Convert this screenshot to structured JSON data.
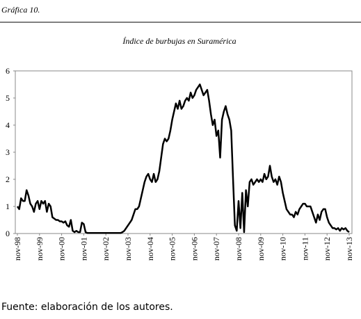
{
  "header": "Gráfica 10.",
  "source": "Fuente: elaboración de los autores.",
  "chart_data": {
    "type": "line",
    "title": "Índice de burbujas en Suramérica",
    "categories": [
      "nov-98",
      null,
      null,
      null,
      null,
      null,
      null,
      null,
      null,
      null,
      null,
      null,
      "nov-99",
      null,
      null,
      null,
      null,
      null,
      null,
      null,
      null,
      null,
      null,
      null,
      "nov-00",
      null,
      null,
      null,
      null,
      null,
      null,
      null,
      null,
      null,
      null,
      null,
      "nov-01",
      null,
      null,
      null,
      null,
      null,
      null,
      null,
      null,
      null,
      null,
      null,
      "nov-02",
      null,
      null,
      null,
      null,
      null,
      null,
      null,
      null,
      null,
      null,
      null,
      "nov-03",
      null,
      null,
      null,
      null,
      null,
      null,
      null,
      null,
      null,
      null,
      null,
      "nov-04",
      null,
      null,
      null,
      null,
      null,
      null,
      null,
      null,
      null,
      null,
      null,
      "nov-05",
      null,
      null,
      null,
      null,
      null,
      null,
      null,
      null,
      null,
      null,
      null,
      "nov-06",
      null,
      null,
      null,
      null,
      null,
      null,
      null,
      null,
      null,
      null,
      null,
      "nov-07",
      null,
      null,
      null,
      null,
      null,
      null,
      null,
      null,
      null,
      null,
      null,
      "nov-08",
      null,
      null,
      null,
      null,
      null,
      null,
      null,
      null,
      null,
      null,
      null,
      "nov-09",
      null,
      null,
      null,
      null,
      null,
      null,
      null,
      null,
      null,
      null,
      null,
      "nov-10",
      null,
      null,
      null,
      null,
      null,
      null,
      null,
      null,
      null,
      null,
      null,
      "nov-11",
      null,
      null,
      null,
      null,
      null,
      null,
      null,
      null,
      null,
      null,
      null,
      "nov-12",
      null,
      null,
      null,
      null,
      null,
      null,
      null,
      null,
      null,
      null,
      null,
      "nov-13"
    ],
    "values": [
      1.0,
      0.9,
      1.3,
      1.2,
      1.2,
      1.6,
      1.4,
      1.1,
      1.0,
      0.8,
      1.1,
      1.2,
      0.9,
      1.2,
      1.1,
      1.2,
      0.8,
      1.1,
      1.0,
      0.6,
      0.55,
      0.5,
      0.5,
      0.45,
      0.45,
      0.4,
      0.45,
      0.3,
      0.25,
      0.5,
      0.1,
      0.05,
      0.1,
      0.05,
      0.05,
      0.4,
      0.35,
      0.05,
      0.02,
      0.02,
      0.02,
      0.02,
      0.02,
      0.02,
      0.02,
      0.02,
      0.02,
      0.02,
      0.02,
      0.02,
      0.02,
      0.02,
      0.02,
      0.02,
      0.02,
      0.02,
      0.02,
      0.05,
      0.1,
      0.2,
      0.3,
      0.4,
      0.5,
      0.7,
      0.9,
      0.9,
      1.0,
      1.3,
      1.6,
      1.9,
      2.1,
      2.2,
      2.0,
      1.9,
      2.2,
      1.9,
      2.0,
      2.3,
      2.8,
      3.3,
      3.5,
      3.4,
      3.5,
      3.8,
      4.2,
      4.5,
      4.8,
      4.6,
      4.9,
      4.6,
      4.7,
      4.9,
      5.0,
      4.9,
      5.2,
      5.0,
      5.1,
      5.3,
      5.4,
      5.5,
      5.3,
      5.1,
      5.2,
      5.3,
      4.9,
      4.4,
      4.0,
      4.2,
      3.6,
      3.8,
      2.8,
      4.2,
      4.5,
      4.7,
      4.4,
      4.2,
      3.8,
      2.0,
      0.3,
      0.1,
      1.2,
      0.2,
      1.5,
      0.05,
      1.6,
      1.0,
      1.9,
      2.0,
      1.8,
      1.9,
      2.0,
      1.9,
      2.0,
      1.9,
      2.2,
      2.0,
      2.1,
      2.5,
      2.1,
      1.9,
      2.0,
      1.8,
      2.1,
      1.9,
      1.5,
      1.2,
      0.9,
      0.8,
      0.7,
      0.7,
      0.6,
      0.8,
      0.7,
      0.9,
      1.0,
      1.1,
      1.1,
      1.0,
      1.0,
      1.0,
      0.8,
      0.6,
      0.4,
      0.7,
      0.5,
      0.8,
      0.9,
      0.9,
      0.6,
      0.4,
      0.3,
      0.2,
      0.2,
      0.15,
      0.2,
      0.1,
      0.2,
      0.15,
      0.2,
      0.1,
      0.05
    ],
    "color": "#000000",
    "ylim": [
      0,
      6
    ],
    "yticks": [
      0,
      1,
      2,
      3,
      4,
      5,
      6
    ],
    "grid": false
  }
}
